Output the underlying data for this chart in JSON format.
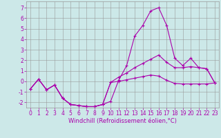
{
  "x": [
    0,
    1,
    2,
    3,
    4,
    5,
    6,
    7,
    8,
    9,
    10,
    11,
    12,
    13,
    14,
    15,
    16,
    17,
    18,
    19,
    20,
    21,
    22,
    23
  ],
  "line1": [
    -0.7,
    0.2,
    -0.8,
    -0.35,
    -1.6,
    -2.2,
    -2.3,
    -2.4,
    -2.4,
    -2.2,
    -1.9,
    0.1,
    1.5,
    4.3,
    5.3,
    6.7,
    7.0,
    5.3,
    2.2,
    1.5,
    2.2,
    1.3,
    1.2,
    -0.15
  ],
  "line2": [
    -0.7,
    0.2,
    -0.8,
    -0.35,
    -1.6,
    -2.2,
    -2.3,
    -2.4,
    -2.4,
    -2.2,
    -0.1,
    0.4,
    0.8,
    1.3,
    1.7,
    2.1,
    2.5,
    1.8,
    1.3,
    1.3,
    1.4,
    1.3,
    1.2,
    -0.15
  ],
  "line3": [
    -0.7,
    0.2,
    -0.8,
    -0.35,
    -1.6,
    -2.2,
    -2.3,
    -2.4,
    -2.4,
    -2.2,
    -0.1,
    0.0,
    0.15,
    0.3,
    0.45,
    0.6,
    0.5,
    0.1,
    -0.2,
    -0.25,
    -0.25,
    -0.25,
    -0.25,
    -0.15
  ],
  "bg_color": "#cce8e8",
  "line_color": "#aa00aa",
  "grid_color": "#999999",
  "xlabel": "Windchill (Refroidissement éolien,°C)",
  "ylim": [
    -2.5,
    7.6
  ],
  "xlim": [
    -0.5,
    23.5
  ],
  "yticks": [
    -2,
    -1,
    0,
    1,
    2,
    3,
    4,
    5,
    6,
    7
  ],
  "xticks": [
    0,
    1,
    2,
    3,
    4,
    5,
    6,
    7,
    8,
    9,
    10,
    11,
    12,
    13,
    14,
    15,
    16,
    17,
    18,
    19,
    20,
    21,
    22,
    23
  ],
  "tick_fontsize": 5.5,
  "xlabel_fontsize": 6,
  "lw": 0.8,
  "ms": 2.5
}
